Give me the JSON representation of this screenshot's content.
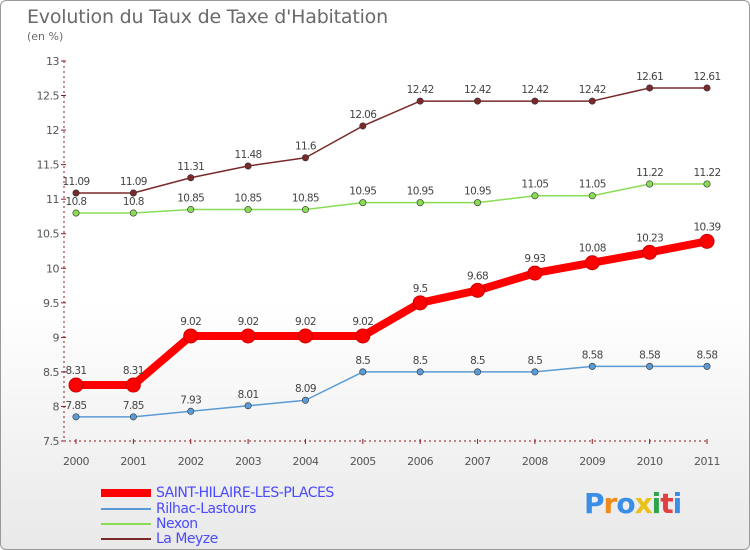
{
  "title": "Evolution du Taux de Taxe d'Habitation",
  "unit_label": "(en %)",
  "logo_text": "Proxiti",
  "chart_data": {
    "type": "line",
    "title": "Evolution du Taux de Taxe d'Habitation",
    "ylabel": "(en %)",
    "xlabel": "",
    "ylim": [
      7.5,
      13
    ],
    "yticks": [
      "7.5",
      "8",
      "8.5",
      "9",
      "9.5",
      "10",
      "10.5",
      "11",
      "11.5",
      "12",
      "12.5",
      "13"
    ],
    "categories": [
      "2000",
      "2001",
      "2002",
      "2003",
      "2004",
      "2005",
      "2006",
      "2007",
      "2008",
      "2009",
      "2010",
      "2011"
    ],
    "grid": false,
    "legend_position": "bottom",
    "series": [
      {
        "name": "SAINT-HILAIRE-LES-PLACES",
        "color": "#ff0000",
        "emphasis": true,
        "values": [
          8.31,
          8.31,
          9.02,
          9.02,
          9.02,
          9.02,
          9.5,
          9.68,
          9.93,
          10.08,
          10.23,
          10.39
        ],
        "labels": [
          "8.31",
          "8.31",
          "9.02",
          "9.02",
          "9.02",
          "9.02",
          "9.5",
          "9.68",
          "9.93",
          "10.08",
          "10.23",
          "10.39"
        ]
      },
      {
        "name": "Rilhac-Lastours",
        "color": "#5b9bd5",
        "emphasis": false,
        "values": [
          7.85,
          7.85,
          7.93,
          8.01,
          8.09,
          8.5,
          8.5,
          8.5,
          8.5,
          8.58,
          8.58,
          8.58
        ],
        "labels": [
          "7.85",
          "7.85",
          "7.93",
          "8.01",
          "8.09",
          "8.5",
          "8.5",
          "8.5",
          "8.5",
          "8.58",
          "8.58",
          "8.58"
        ]
      },
      {
        "name": "Nexon",
        "color": "#88dd55",
        "emphasis": false,
        "values": [
          10.8,
          10.8,
          10.85,
          10.85,
          10.85,
          10.95,
          10.95,
          10.95,
          11.05,
          11.05,
          11.22,
          11.22
        ],
        "labels": [
          "10.8",
          "10.8",
          "10.85",
          "10.85",
          "10.85",
          "10.95",
          "10.95",
          "10.95",
          "11.05",
          "11.05",
          "11.22",
          "11.22"
        ]
      },
      {
        "name": "La Meyze",
        "color": "#7a2a2a",
        "emphasis": false,
        "values": [
          11.09,
          11.09,
          11.31,
          11.48,
          11.6,
          12.06,
          12.42,
          12.42,
          12.42,
          12.42,
          12.61,
          12.61
        ],
        "labels": [
          "11.09",
          "11.09",
          "11.31",
          "11.48",
          "11.6",
          "12.06",
          "12.42",
          "12.42",
          "12.42",
          "12.42",
          "12.61",
          "12.61"
        ]
      }
    ]
  }
}
